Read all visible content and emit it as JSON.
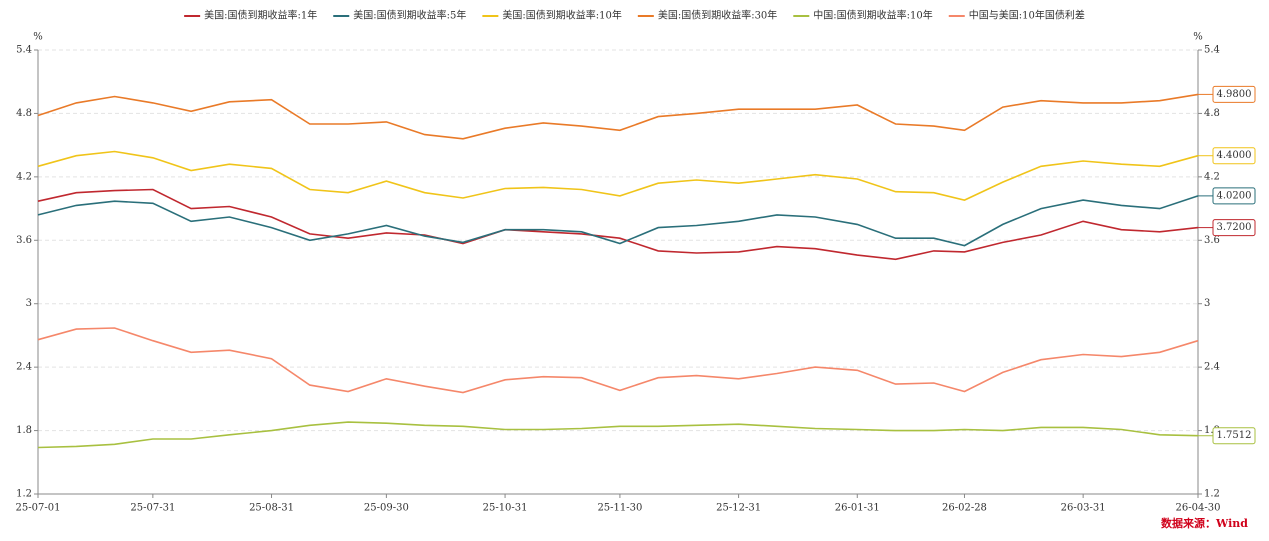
{
  "chart_data": {
    "type": "line",
    "x": [
      "25-07-01",
      "25-07-11",
      "25-07-21",
      "25-07-31",
      "25-08-10",
      "25-08-20",
      "25-08-31",
      "25-09-10",
      "25-09-20",
      "25-09-30",
      "25-10-10",
      "25-10-20",
      "25-10-31",
      "25-11-10",
      "25-11-20",
      "25-11-30",
      "25-12-10",
      "25-12-20",
      "25-12-31",
      "26-01-10",
      "26-01-20",
      "26-01-31",
      "26-02-10",
      "26-02-20",
      "26-02-28",
      "26-03-10",
      "26-03-20",
      "26-03-31",
      "26-04-10",
      "26-04-20",
      "26-04-30"
    ],
    "xticks": [
      "25-07-01",
      "25-07-31",
      "25-08-31",
      "25-09-30",
      "25-10-31",
      "25-11-30",
      "25-12-31",
      "26-01-31",
      "26-02-28",
      "26-03-31",
      "26-04-30"
    ],
    "ylim": [
      1.2,
      5.4
    ],
    "yticks": [
      1.2,
      1.8,
      2.4,
      3,
      3.6,
      4.2,
      4.8,
      5.4
    ],
    "y2lim": [
      1.2,
      5.4
    ],
    "y2ticks": [
      1.2,
      1.8,
      2.4,
      3,
      3.6,
      4.2,
      4.8,
      5.4
    ],
    "y_unit": "%",
    "y2_unit": "%",
    "grid": true,
    "legend": "top",
    "source": "数据来源：Wind",
    "series": [
      {
        "name": "美国:国债到期收益率:1年",
        "color": "#c0282f",
        "values": [
          3.97,
          4.05,
          4.07,
          4.08,
          3.9,
          3.92,
          3.82,
          3.66,
          3.62,
          3.67,
          3.65,
          3.57,
          3.7,
          3.68,
          3.66,
          3.62,
          3.5,
          3.48,
          3.49,
          3.54,
          3.52,
          3.46,
          3.42,
          3.5,
          3.49,
          3.58,
          3.65,
          3.78,
          3.7,
          3.68,
          3.72
        ],
        "value_labels": [
          null,
          null,
          null,
          null,
          null,
          null,
          null,
          null,
          null,
          null,
          null,
          null,
          null,
          null,
          null,
          null,
          null,
          null,
          null,
          null,
          null,
          null,
          null,
          null,
          null,
          null,
          null,
          null,
          null,
          null,
          "3.7200"
        ]
      },
      {
        "name": "美国:国债到期收益率:5年",
        "color": "#2a6f7a",
        "values": [
          3.84,
          3.93,
          3.97,
          3.95,
          3.78,
          3.82,
          3.72,
          3.6,
          3.66,
          3.74,
          3.64,
          3.58,
          3.7,
          3.7,
          3.68,
          3.57,
          3.72,
          3.74,
          3.78,
          3.84,
          3.82,
          3.75,
          3.62,
          3.62,
          3.55,
          3.75,
          3.9,
          3.98,
          3.93,
          3.9,
          4.02
        ],
        "value_labels": [
          null,
          null,
          null,
          null,
          null,
          null,
          null,
          null,
          null,
          null,
          null,
          null,
          null,
          null,
          null,
          null,
          null,
          null,
          null,
          null,
          null,
          null,
          null,
          null,
          null,
          null,
          null,
          null,
          null,
          null,
          "4.0200"
        ]
      },
      {
        "name": "美国:国债到期收益率:10年",
        "color": "#f0c419",
        "values": [
          4.3,
          4.4,
          4.44,
          4.38,
          4.26,
          4.32,
          4.28,
          4.08,
          4.05,
          4.16,
          4.05,
          4.0,
          4.09,
          4.1,
          4.08,
          4.02,
          4.14,
          4.17,
          4.14,
          4.18,
          4.22,
          4.18,
          4.06,
          4.05,
          3.98,
          4.15,
          4.3,
          4.35,
          4.32,
          4.3,
          4.4
        ],
        "value_labels": [
          null,
          null,
          null,
          null,
          null,
          null,
          null,
          null,
          null,
          null,
          null,
          null,
          null,
          null,
          null,
          null,
          null,
          null,
          null,
          null,
          null,
          null,
          null,
          null,
          null,
          null,
          null,
          null,
          null,
          null,
          "4.4000"
        ]
      },
      {
        "name": "美国:国债到期收益率:30年",
        "color": "#e97a28",
        "values": [
          4.78,
          4.9,
          4.96,
          4.9,
          4.82,
          4.91,
          4.93,
          4.7,
          4.7,
          4.72,
          4.6,
          4.56,
          4.66,
          4.71,
          4.68,
          4.64,
          4.77,
          4.8,
          4.84,
          4.84,
          4.84,
          4.88,
          4.7,
          4.68,
          4.64,
          4.86,
          4.92,
          4.9,
          4.9,
          4.92,
          4.98
        ],
        "value_labels": [
          null,
          null,
          null,
          null,
          null,
          null,
          null,
          null,
          null,
          null,
          null,
          null,
          null,
          null,
          null,
          null,
          null,
          null,
          null,
          null,
          null,
          null,
          null,
          null,
          null,
          null,
          null,
          null,
          null,
          null,
          "4.9800"
        ]
      },
      {
        "name": "中国:国债到期收益率:10年",
        "color": "#a8c040",
        "values": [
          1.64,
          1.65,
          1.67,
          1.72,
          1.72,
          1.76,
          1.8,
          1.85,
          1.88,
          1.87,
          1.85,
          1.84,
          1.81,
          1.81,
          1.82,
          1.84,
          1.84,
          1.85,
          1.86,
          1.84,
          1.82,
          1.81,
          1.8,
          1.8,
          1.81,
          1.8,
          1.83,
          1.83,
          1.81,
          1.76,
          1.7512
        ],
        "value_labels": [
          null,
          null,
          null,
          null,
          null,
          null,
          null,
          null,
          null,
          null,
          null,
          null,
          null,
          null,
          null,
          null,
          null,
          null,
          null,
          null,
          null,
          null,
          null,
          null,
          null,
          null,
          null,
          null,
          null,
          null,
          "1.7512"
        ]
      },
      {
        "name": "中国与美国:10年国债利差",
        "color": "#f5876a",
        "values": [
          2.66,
          2.76,
          2.77,
          2.65,
          2.54,
          2.56,
          2.48,
          2.23,
          2.17,
          2.29,
          2.22,
          2.16,
          2.28,
          2.31,
          2.3,
          2.18,
          2.3,
          2.32,
          2.29,
          2.34,
          2.4,
          2.37,
          2.24,
          2.25,
          2.17,
          2.35,
          2.47,
          2.52,
          2.5,
          2.54,
          2.65
        ]
      }
    ]
  }
}
